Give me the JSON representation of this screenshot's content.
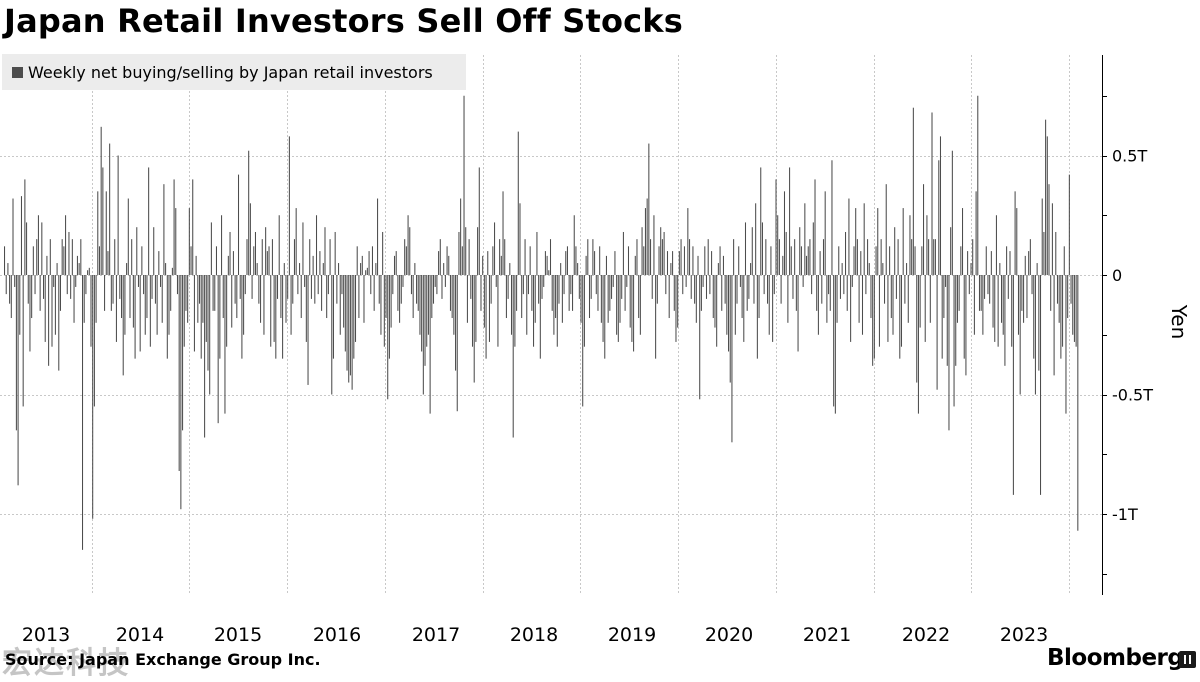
{
  "title": "Japan Retail Investors Sell Off Stocks",
  "source": "Source: Japan Exchange Group Inc.",
  "brand": "Bloomberg",
  "watermark": "宏达科技",
  "colors": {
    "bar": "#4d4d4d",
    "grid": "#c8c8c8",
    "legend_bg": "#ececec",
    "text": "#000000"
  },
  "chart_data": {
    "type": "bar",
    "title": "Japan Retail Investors Sell Off Stocks",
    "legend": [
      "Weekly net buying/selling by Japan retail investors"
    ],
    "legend_position": "top-left",
    "xlabel": "",
    "ylabel": "Yen",
    "y_axis_side": "right",
    "ylim": [
      -1.25,
      0.9
    ],
    "yticks": [
      {
        "value": 0.5,
        "label": "0.5T"
      },
      {
        "value": 0,
        "label": "0"
      },
      {
        "value": -0.5,
        "label": "-0.5T"
      },
      {
        "value": -1,
        "label": "-1T"
      }
    ],
    "x_tick_labels": [
      "2013",
      "2014",
      "2015",
      "2016",
      "2017",
      "2018",
      "2019",
      "2020",
      "2021",
      "2022",
      "2023"
    ],
    "grid": true,
    "series": [
      {
        "name": "Weekly net buying/selling by Japan retail investors",
        "weeks_per_year": [
          52,
          52,
          52,
          52,
          52,
          52,
          52,
          52,
          52,
          52,
          52
        ],
        "values_trillion_yen": [
          0.12,
          -0.08,
          0.05,
          -0.12,
          -0.18,
          0.32,
          -0.05,
          -0.65,
          -0.88,
          -0.25,
          0.33,
          -0.55,
          0.4,
          0.22,
          -0.12,
          -0.32,
          -0.18,
          0.12,
          -0.08,
          0.15,
          0.25,
          -0.15,
          0.22,
          -0.1,
          -0.28,
          0.08,
          -0.38,
          0.15,
          -0.3,
          -0.05,
          -0.25,
          0.05,
          -0.4,
          -0.15,
          0.15,
          0.12,
          0.25,
          -0.08,
          0.18,
          -0.1,
          0.15,
          -0.2,
          -0.05,
          0.08,
          0.05,
          0.15,
          -1.15,
          -0.2,
          -0.08,
          0.02,
          0.03,
          -0.3,
          -1.02,
          -0.55,
          -0.2,
          0.35,
          0.12,
          0.62,
          0.45,
          -0.15,
          0.35,
          0.1,
          0.55,
          -0.15,
          -0.12,
          0.15,
          -0.28,
          0.5,
          -0.1,
          -0.18,
          -0.42,
          -0.25,
          0.05,
          0.32,
          -0.18,
          0.15,
          -0.22,
          -0.35,
          0.2,
          -0.05,
          -0.32,
          0.12,
          -0.08,
          -0.25,
          -0.18,
          0.45,
          -0.3,
          -0.1,
          0.2,
          -0.12,
          -0.25,
          0.1,
          -0.05,
          -0.2,
          0.38,
          0.05,
          -0.35,
          -0.25,
          -0.15,
          0.03,
          0.4,
          0.28,
          -0.08,
          -0.82,
          -0.98,
          -0.65,
          -0.3,
          -0.15,
          -0.2,
          0.28,
          0.12,
          0.4,
          -0.32,
          0.08,
          -0.2,
          -0.12,
          -0.35,
          -0.2,
          -0.68,
          -0.28,
          -0.4,
          -0.5,
          0.22,
          -0.15,
          -0.15,
          0.12,
          -0.62,
          -0.35,
          0.25,
          -0.18,
          -0.58,
          -0.3,
          0.08,
          0.18,
          -0.22,
          0.1,
          -0.12,
          -0.18,
          0.42,
          -0.1,
          -0.35,
          -0.25,
          -0.08,
          0.15,
          0.52,
          0.3,
          -0.1,
          0.12,
          0.18,
          0.05,
          -0.12,
          -0.2,
          0.15,
          -0.25,
          0.2,
          0.1,
          0.12,
          -0.3,
          0.15,
          -0.28,
          -0.35,
          -0.1,
          0.25,
          -0.18,
          -0.35,
          0.05,
          -0.2,
          -0.1,
          0.58,
          -0.25,
          -0.12,
          0.15,
          0.28,
          -0.08,
          0.05,
          -0.18,
          0.22,
          -0.05,
          -0.28,
          -0.46,
          0.15,
          -0.1,
          0.08,
          -0.12,
          0.25,
          -0.08,
          0.1,
          -0.15,
          0.05,
          0.2,
          -0.18,
          -0.08,
          0.15,
          -0.5,
          -0.35,
          0.18,
          -0.12,
          0.05,
          -0.25,
          -0.08,
          -0.22,
          -0.32,
          -0.4,
          -0.45,
          -0.42,
          -0.48,
          -0.35,
          -0.28,
          0.12,
          -0.18,
          0.05,
          0.08,
          -0.2,
          0.02,
          0.03,
          0.1,
          -0.08,
          0.12,
          -0.15,
          0.05,
          0.32,
          -0.12,
          -0.25,
          0.18,
          -0.3,
          -0.18,
          -0.52,
          -0.35,
          -0.22,
          -0.08,
          0.08,
          0.1,
          -0.15,
          -0.2,
          -0.12,
          -0.05,
          0.15,
          0.12,
          0.25,
          0.2,
          -0.08,
          -0.18,
          0.05,
          -0.12,
          -0.15,
          -0.25,
          -0.32,
          -0.5,
          -0.38,
          -0.3,
          -0.25,
          -0.58,
          -0.18,
          -0.12,
          -0.05,
          -0.08,
          0.1,
          0.15,
          -0.1,
          0.05,
          -0.05,
          0.12,
          0.08,
          -0.15,
          -0.18,
          -0.25,
          -0.4,
          -0.57,
          0.18,
          0.32,
          0.12,
          0.75,
          0.2,
          -0.2,
          0.15,
          -0.1,
          -0.3,
          -0.45,
          -0.28,
          0.2,
          0.45,
          -0.15,
          0.08,
          -0.22,
          -0.35,
          0.1,
          -0.28,
          -0.12,
          0.12,
          0.22,
          -0.05,
          -0.3,
          0.15,
          0.08,
          0.35,
          0.15,
          -0.18,
          -0.1,
          0.05,
          -0.25,
          -0.68,
          -0.3,
          -0.15,
          0.6,
          0.3,
          -0.18,
          -0.08,
          0.15,
          -0.25,
          -0.08,
          0.12,
          -0.15,
          -0.3,
          -0.2,
          0.18,
          -0.12,
          -0.35,
          -0.1,
          -0.05,
          0.1,
          0.08,
          0.02,
          0.15,
          -0.15,
          -0.25,
          -0.18,
          -0.3,
          -0.12,
          0.05,
          -0.2,
          -0.08,
          0.1,
          0.12,
          -0.15,
          -0.08,
          -0.15,
          0.25,
          0.12,
          0.05,
          -0.1,
          -0.2,
          -0.55,
          -0.3,
          0.08,
          0.15,
          -0.18,
          -0.1,
          0.15,
          0.1,
          -0.08,
          -0.15,
          0.12,
          -0.2,
          -0.28,
          -0.35,
          0.08,
          -0.2,
          -0.15,
          -0.1,
          -0.05,
          0.1,
          -0.25,
          -0.28,
          -0.2,
          -0.1,
          0.18,
          -0.15,
          -0.05,
          0.12,
          -0.22,
          -0.28,
          -0.32,
          0.08,
          0.15,
          -0.18,
          -0.25,
          0.2,
          0.12,
          0.28,
          0.32,
          0.55,
          0.15,
          -0.1,
          0.25,
          -0.35,
          -0.12,
          0.12,
          0.2,
          0.15,
          0.18,
          -0.08,
          0.1,
          -0.18,
          0.05,
          0.1,
          -0.15,
          -0.28,
          -0.22,
          0.1,
          0.15,
          -0.08,
          0.12,
          -0.05,
          0.28,
          0.15,
          -0.1,
          0.12,
          -0.12,
          -0.2,
          0.08,
          -0.52,
          -0.15,
          -0.05,
          0.12,
          -0.1,
          0.15,
          -0.08,
          0.1,
          -0.18,
          -0.22,
          -0.3,
          0.05,
          0.12,
          -0.15,
          0.08,
          -0.12,
          -0.25,
          -0.32,
          -0.45,
          -0.7,
          0.15,
          -0.25,
          -0.12,
          0.12,
          -0.05,
          -0.18,
          -0.28,
          0.22,
          -0.15,
          -0.1,
          0.05,
          0.2,
          -0.12,
          0.3,
          -0.35,
          -0.18,
          0.45,
          0.22,
          -0.08,
          0.15,
          -0.12,
          -0.25,
          0.12,
          -0.28,
          -0.08,
          0.4,
          0.25,
          0.15,
          -0.12,
          0.08,
          0.35,
          0.18,
          -0.2,
          0.45,
          0.12,
          -0.1,
          0.15,
          -0.15,
          -0.32,
          0.2,
          0.12,
          -0.05,
          0.3,
          0.08,
          0.12,
          0.15,
          -0.08,
          0.22,
          0.4,
          -0.15,
          -0.25,
          0.1,
          -0.12,
          0.15,
          0.35,
          -0.2,
          -0.08,
          -0.15,
          0.48,
          -0.55,
          -0.58,
          -0.2,
          0.12,
          -0.1,
          0.05,
          -0.08,
          0.18,
          -0.15,
          0.32,
          -0.28,
          -0.05,
          0.12,
          0.28,
          0.15,
          -0.2,
          0.1,
          -0.25,
          0.3,
          -0.08,
          0.15,
          0.05,
          -0.18,
          -0.38,
          -0.35,
          0.12,
          0.28,
          -0.3,
          0.15,
          0.05,
          -0.12,
          0.38,
          -0.28,
          0.12,
          -0.18,
          -0.25,
          0.2,
          -0.1,
          0.15,
          -0.35,
          -0.3,
          0.28,
          -0.12,
          0.05,
          -0.2,
          0.25,
          0.15,
          0.7,
          0.12,
          -0.45,
          -0.58,
          -0.22,
          0.12,
          0.38,
          -0.28,
          0.25,
          0.15,
          -0.2,
          0.68,
          0.15,
          0.15,
          -0.48,
          0.48,
          0.58,
          -0.35,
          -0.18,
          -0.05,
          -0.38,
          -0.65,
          0.2,
          0.52,
          -0.55,
          -0.38,
          -0.2,
          -0.15,
          0.12,
          0.28,
          -0.35,
          -0.42,
          0.1,
          -0.08,
          0.05,
          0.15,
          -0.25,
          0.35,
          0.75,
          -0.15,
          -0.15,
          -0.25,
          -0.1,
          0.12
        ]
      }
    ],
    "note": "final_weeks",
    "final_values_trillion_yen": [
      -0.08,
      -0.12,
      0.1,
      -0.22,
      -0.28,
      0.25,
      -0.3,
      0.05,
      -0.2,
      -0.25,
      -0.38,
      0.12,
      -0.1,
      0.1,
      -0.3,
      -0.92,
      0.35,
      0.28,
      -0.25,
      -0.5,
      -0.15,
      -0.2,
      0.08,
      -0.18,
      0.1,
      0.15,
      -0.08,
      -0.35,
      -0.5,
      0.05,
      -0.4,
      -0.92,
      0.32,
      0.18,
      0.65,
      0.58,
      0.38,
      -0.15,
      0.3,
      -0.42,
      0.18,
      -0.12,
      -0.2,
      -0.35,
      -0.3,
      0.12,
      -0.58,
      -0.18,
      0.42,
      -0.12,
      -0.25,
      -0.28,
      -0.3,
      -1.07
    ]
  }
}
